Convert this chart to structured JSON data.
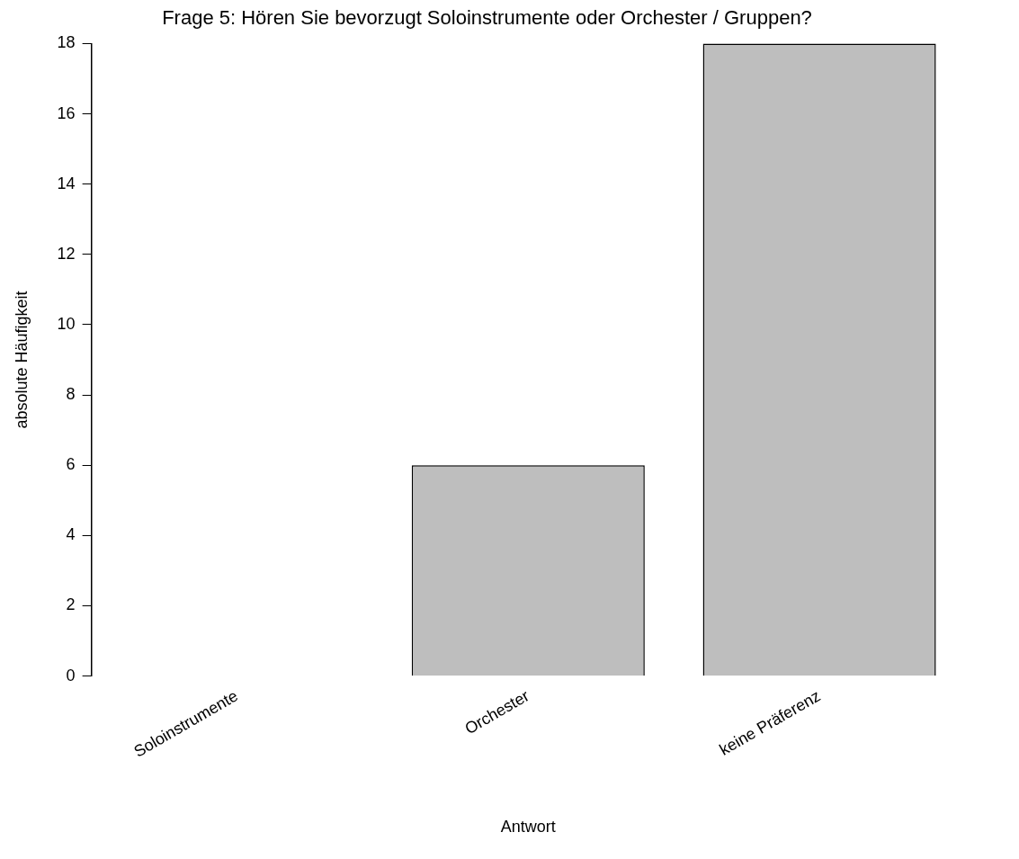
{
  "chart_data": {
    "type": "bar",
    "title": "Frage 5: Hören Sie bevorzugt Soloinstrumente oder Orchester / Gruppen?",
    "xlabel": "Antwort",
    "ylabel": "absolute Häufigkeit",
    "categories": [
      "Soloinstrumente",
      "Orchester",
      "keine Präferenz"
    ],
    "values": [
      0,
      6,
      18
    ],
    "color": "#bebebe",
    "ylim": [
      0,
      18
    ],
    "yticks": [
      0,
      2,
      4,
      6,
      8,
      10,
      12,
      14,
      16,
      18
    ],
    "grid": false,
    "legend": false
  }
}
